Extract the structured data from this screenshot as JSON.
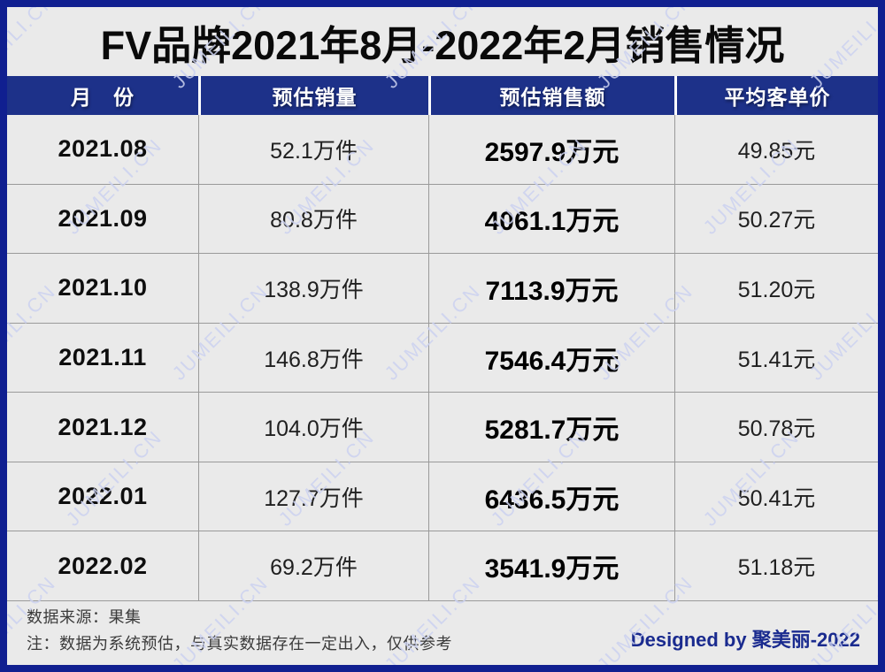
{
  "page": {
    "watermark": "JUMEILI.CN"
  },
  "chart_data": {
    "type": "table",
    "title": "FV品牌2021年8月-2022年2月销售情况",
    "columns": [
      "月　份",
      "预估销量",
      "预估销售额",
      "平均客单价"
    ],
    "rows": [
      [
        "2021.08",
        "52.1万件",
        "2597.9万元",
        "49.85元"
      ],
      [
        "2021.09",
        "80.8万件",
        "4061.1万元",
        "50.27元"
      ],
      [
        "2021.10",
        "138.9万件",
        "7113.9万元",
        "51.20元"
      ],
      [
        "2021.11",
        "146.8万件",
        "7546.4万元",
        "51.41元"
      ],
      [
        "2021.12",
        "104.0万件",
        "5281.7万元",
        "50.78元"
      ],
      [
        "2022.01",
        "127.7万件",
        "6436.5万元",
        "50.41元"
      ],
      [
        "2022.02",
        "69.2万件",
        "3541.9万元",
        "51.18元"
      ]
    ]
  },
  "footer": {
    "source": "数据来源：果集",
    "note": "注：数据为系统预估，与真实数据存在一定出入，仅供参考",
    "credit": "Designed by 聚美丽-2022"
  },
  "colors": {
    "border_blue": "#101F90",
    "header_blue": "#1D3189",
    "body_gray": "#EAEAEA",
    "grid_line": "#9A9A9A",
    "credit_blue": "#1A2B8F",
    "wm_color": "#CCD2F0"
  }
}
